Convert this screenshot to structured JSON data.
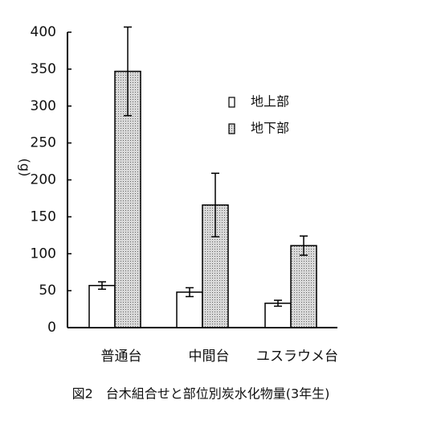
{
  "chart_data": {
    "type": "bar",
    "title": "図2　台木組合せと部位別炭水化物量(3年生)",
    "y_label": "(g)",
    "categories": [
      "普通台",
      "中間台",
      "ユスラウメ台"
    ],
    "series": [
      {
        "name": "地上部",
        "color": "#ffffff",
        "pattern": "none",
        "values": [
          57,
          48,
          33
        ],
        "errors": [
          5,
          6,
          4
        ]
      },
      {
        "name": "地下部",
        "color": "#d9d9d9",
        "pattern": "dots",
        "values": [
          347,
          166,
          111
        ],
        "errors": [
          60,
          43,
          13
        ]
      }
    ],
    "ylim": [
      0,
      400
    ],
    "yticks": [
      0,
      50,
      100,
      150,
      200,
      250,
      300,
      350,
      400
    ],
    "legend": "upper right"
  }
}
